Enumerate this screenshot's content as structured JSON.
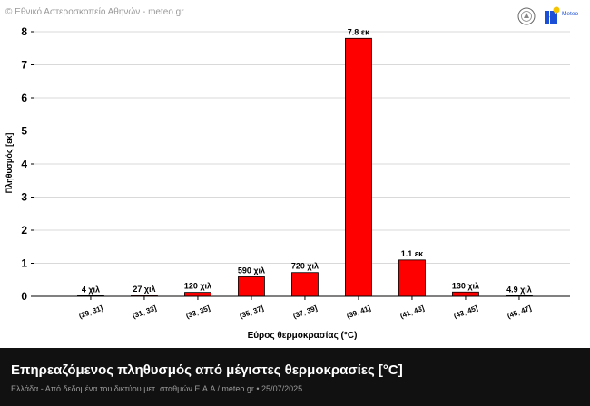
{
  "header": {
    "copyright": "© Εθνικό Αστεροσκοπείο Αθηνών - meteo.gr",
    "logo_text": "Meteo"
  },
  "footer": {
    "title": "Επηρεαζόμενος πληθυσμός από μέγιστες θερμοκρασίες [°C]",
    "subtitle": "Ελλάδα - Από δεδομένα του δικτύου μετ. σταθμών Ε.Α.Α / meteo.gr • 25/07/2025"
  },
  "colors": {
    "bar_fill": "#ff0000",
    "bar_stroke": "#000000",
    "grid": "#d9d9d9",
    "footer_bg": "#111111"
  },
  "chart_data": {
    "type": "bar",
    "categories": [
      "(29, 31]",
      "(31, 33]",
      "(33, 35]",
      "(35, 37]",
      "(37, 39]",
      "(39, 41]",
      "(41, 43]",
      "(43, 45]",
      "(45, 47]"
    ],
    "values": [
      0.004,
      0.027,
      0.12,
      0.59,
      0.72,
      7.8,
      1.1,
      0.13,
      0.0049
    ],
    "data_labels": [
      "4 χιλ",
      "27 χιλ",
      "120 χιλ",
      "590 χιλ",
      "720 χιλ",
      "7.8 εκ",
      "1.1 εκ",
      "130 χιλ",
      "4.9 χιλ"
    ],
    "xlabel": "Εύρος θερμοκρασίας (°C)",
    "ylabel": "Πληθυσμός [εκ]",
    "ylim": [
      0,
      8
    ],
    "yticks": [
      "0",
      "1",
      "2",
      "3",
      "4",
      "5",
      "6",
      "7",
      "8"
    ],
    "grid": true,
    "legend": "none"
  }
}
